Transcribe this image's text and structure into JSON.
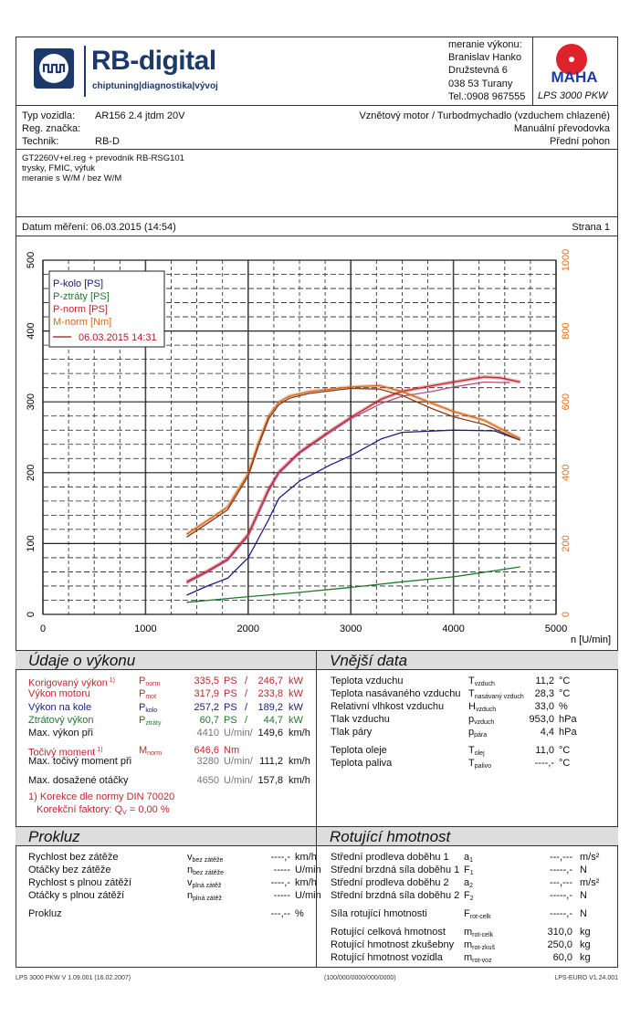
{
  "header": {
    "brand": "RB-digital",
    "tagline": "chiptuning|diagnostika|vývoj",
    "contact": [
      "meranie výkonu:",
      "Branislav Hanko",
      "Družstevná 6",
      "038 53 Turany",
      "Tel.:0908 967555"
    ],
    "maha_logo": "MAHA",
    "device": "LPS 3000 PKW"
  },
  "vehicle": {
    "type_label": "Typ vozidla:",
    "type": "AR156 2.4 jtdm 20V",
    "reg_label": "Reg. značka:",
    "reg": "",
    "tech_label": "Technik:",
    "tech": "RB-D",
    "engine": "Vznětový motor / Turbodmychadlo (vzduchem chlazené)",
    "gearbox": "Manuální převodovka",
    "drive": "Přední pohon"
  },
  "notes": [
    "GT2260V+el.reg + prevodník RB-RSG101",
    "trysky, FMIC, výfuk",
    "meranie s W/M  /  bez W/M"
  ],
  "date_line": "Datum měření: 06.03.2015 (14:54)",
  "page": "Strana 1",
  "chart_data": {
    "type": "line",
    "xlabel": "n [U/min]",
    "xlim": [
      0,
      5000
    ],
    "ylim_left": [
      0,
      500
    ],
    "ylim_right": [
      0,
      1000
    ],
    "x_ticks": [
      "0",
      "1000",
      "2000",
      "3000",
      "4000",
      "5000"
    ],
    "y_ticks_left": [
      "0",
      "100",
      "200",
      "300",
      "400",
      "500"
    ],
    "y_ticks_right": [
      "0",
      "200",
      "400",
      "600",
      "800",
      "1000"
    ],
    "legend": [
      "P-kolo [PS]",
      "P-ztráty [PS]",
      "P-norm [PS]",
      "M-norm [Nm]"
    ],
    "legend_run": "06.03.2015 14:31",
    "legend_placement": "top-left",
    "series": [
      {
        "name": "P-kolo [PS]",
        "axis": "left",
        "color": "#1a2280",
        "x": [
          1400,
          1600,
          1800,
          2000,
          2200,
          2300,
          2500,
          2800,
          3000,
          3300,
          3500,
          4000,
          4400,
          4650
        ],
        "y": [
          27,
          40,
          51,
          80,
          134,
          164,
          188,
          211,
          224,
          248,
          257,
          260,
          259,
          246
        ]
      },
      {
        "name": "P-ztráty [PS]",
        "axis": "left",
        "color": "#1f7a2a",
        "x": [
          1400,
          2000,
          2500,
          3000,
          3500,
          4000,
          4650
        ],
        "y": [
          17,
          25,
          31,
          38,
          46,
          53,
          67
        ]
      },
      {
        "name": "P-norm [PS]",
        "axis": "left",
        "color": "#c0272d",
        "x": [
          1400,
          1600,
          1800,
          2000,
          2200,
          2300,
          2500,
          2800,
          3000,
          3300,
          3500,
          3800,
          4000,
          4300,
          4450,
          4650
        ],
        "y": [
          46,
          61,
          78,
          113,
          177,
          201,
          229,
          259,
          278,
          304,
          315,
          323,
          328,
          335,
          334,
          328
        ]
      },
      {
        "name": "P-norm [PS] run 2",
        "axis": "left",
        "color": "#b0508a",
        "x": [
          1400,
          1600,
          1800,
          2000,
          2200,
          2300,
          2500,
          2800,
          3000,
          3300,
          3500,
          3800,
          4000,
          4300,
          4550
        ],
        "y": [
          44,
          59,
          76,
          110,
          174,
          199,
          227,
          257,
          276,
          298,
          308,
          315,
          321,
          328,
          327
        ]
      },
      {
        "name": "M-norm [Nm]",
        "axis": "right",
        "color": "#d2691e",
        "x": [
          1400,
          1600,
          1800,
          2000,
          2100,
          2200,
          2300,
          2400,
          2600,
          3000,
          3280,
          3500,
          3800,
          4000,
          4300,
          4650
        ],
        "y": [
          226,
          264,
          303,
          397,
          483,
          560,
          599,
          616,
          629,
          642,
          646,
          629,
          595,
          573,
          548,
          496
        ]
      },
      {
        "name": "M-norm [Nm] run 2",
        "axis": "right",
        "color": "#8b3a1a",
        "x": [
          1400,
          1600,
          1800,
          2000,
          2100,
          2200,
          2300,
          2400,
          2600,
          3000,
          3280,
          3500,
          3800,
          4000,
          4300,
          4650
        ],
        "y": [
          218,
          256,
          295,
          390,
          476,
          552,
          592,
          610,
          624,
          638,
          636,
          618,
          580,
          558,
          536,
          492
        ]
      }
    ]
  },
  "power": {
    "title": "Údaje o výkonu",
    "rows": [
      {
        "label": "Korigovaný výkon",
        "note": "1)",
        "sym": "P",
        "sub": "norm",
        "v1": "335,5",
        "u1": "PS",
        "sep": "/",
        "v2": "246,7",
        "u2": "kW",
        "color": "#c0272d"
      },
      {
        "label": "Výkon motoru",
        "sym": "P",
        "sub": "mot",
        "v1": "317,9",
        "u1": "PS",
        "sep": "/",
        "v2": "233,8",
        "u2": "kW",
        "color": "#c0272d"
      },
      {
        "label": "Výkon na kole",
        "sym": "P",
        "sub": "kolo",
        "v1": "257,2",
        "u1": "PS",
        "sep": "/",
        "v2": "189,2",
        "u2": "kW",
        "color": "#1a2280"
      },
      {
        "label": "Ztrátový výkon",
        "sym": "P",
        "sub": "ztráty",
        "v1": "60,7",
        "u1": "PS",
        "sep": "/",
        "v2": "44,7",
        "u2": "kW",
        "color": "#1f7a2a"
      },
      {
        "label": "Max. výkon při",
        "v1": "4410",
        "u1": "U/min/",
        "v2": "149,6",
        "u2": "km/h",
        "color": "#111"
      }
    ],
    "torque": {
      "label": "Točivý moment",
      "note": "1)",
      "sym": "M",
      "sub": "norm",
      "v1": "646,6",
      "u1": "Nm"
    },
    "max_torque": {
      "label": "Max. točivý moment při",
      "v1": "3280",
      "u1": "U/min/",
      "v2": "111,2",
      "u2": "km/h"
    },
    "max_rpm": {
      "label": "Max. dosažené otáčky",
      "v1": "4650",
      "u1": "U/min/",
      "v2": "157,8",
      "u2": "km/h"
    },
    "footnote1": "1) Korekce dle normy DIN 70020",
    "footnote2": "Korekční faktory: Q",
    "footnote2_sub": "V",
    "footnote2_val": "=   0,00 %"
  },
  "external": {
    "title": "Vnější data",
    "rows": [
      {
        "label": "Teplota vzduchu",
        "sym": "T",
        "sub": "vzduch",
        "v": "11,2",
        "u": "°C"
      },
      {
        "label": "Teplota nasávaného vzduchu",
        "sym": "T",
        "sub": "nasávaný vzduch",
        "v": "28,3",
        "u": "°C"
      },
      {
        "label": "Relativní vlhkost vzduchu",
        "sym": "H",
        "sub": "vzduch",
        "v": "33,0",
        "u": "%"
      },
      {
        "label": "Tlak vzduchu",
        "sym": "p",
        "sub": "vzduch",
        "v": "953,0",
        "u": "hPa"
      },
      {
        "label": "Tlak páry",
        "sym": "p",
        "sub": "pára",
        "v": "4,4",
        "u": "hPa"
      },
      {
        "label": "Teplota oleje",
        "sym": "T",
        "sub": "olej",
        "v": "11,0",
        "u": "°C"
      },
      {
        "label": "Teplota paliva",
        "sym": "T",
        "sub": "palivo",
        "v": "----,-",
        "u": "°C"
      }
    ]
  },
  "slip": {
    "title": "Prokluz",
    "rows": [
      {
        "label": "Rychlost bez zátěže",
        "sym": "v",
        "sub": "bez zátěže",
        "v": "----,-",
        "u": "km/h"
      },
      {
        "label": "Otáčky bez zátěže",
        "sym": "n",
        "sub": "bez zátěže",
        "v": "-----",
        "u": "U/min"
      },
      {
        "label": "Rychlost s plnou zátěží",
        "sym": "v",
        "sub": "plná zátěž",
        "v": "----,-",
        "u": "km/h"
      },
      {
        "label": "Otáčky s plnou zátěží",
        "sym": "n",
        "sub": "plná zátěž",
        "v": "-----",
        "u": "U/min"
      },
      {
        "label": "Prokluz",
        "sym": "",
        "sub": "",
        "v": "---,--",
        "u": "%"
      }
    ]
  },
  "rot": {
    "title": "Rotující hmotnost",
    "rows": [
      {
        "label": "Střední prodleva doběhu 1",
        "sym": "a",
        "sub": "1",
        "v": "---,---",
        "u": "m/s²"
      },
      {
        "label": "Střední brzdná síla doběhu 1",
        "sym": "F",
        "sub": "1",
        "v": "-----,-",
        "u": "N"
      },
      {
        "label": "Střední prodleva doběhu 2",
        "sym": "a",
        "sub": "2",
        "v": "---,---",
        "u": "m/s²"
      },
      {
        "label": "Střední brzdná síla doběhu 2",
        "sym": "F",
        "sub": "2",
        "v": "-----,-",
        "u": "N"
      },
      {
        "label": "Síla rotující hmotnosti",
        "sym": "F",
        "sub": "rot-celk",
        "v": "-----,-",
        "u": "N"
      },
      {
        "label": "Rotující celková hmotnost",
        "sym": "m",
        "sub": "rot-celk",
        "v": "310,0",
        "u": "kg"
      },
      {
        "label": "Rotující hmotnost zkušebny",
        "sym": "m",
        "sub": "rot-zkuš",
        "v": "250,0",
        "u": "kg"
      },
      {
        "label": "Rotující hmotnost vozidla",
        "sym": "m",
        "sub": "rot-voz",
        "v": "60,0",
        "u": "kg"
      }
    ]
  },
  "footer": {
    "left": "LPS 3000 PKW V 1.09.001 (16.02.2007)",
    "center": "(100/000/0000/000/0000)",
    "right": "LPS-EURO V1.24.001"
  }
}
